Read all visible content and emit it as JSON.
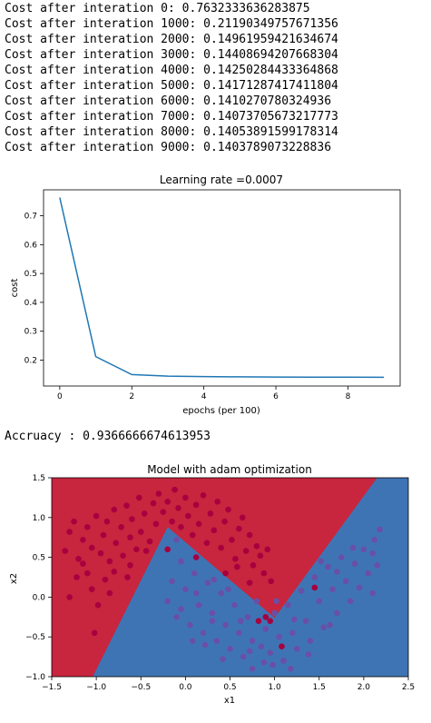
{
  "output_log": {
    "lines": [
      "Cost after interation 0: 0.7632333636283875",
      "Cost after interation 1000: 0.21190349757671356",
      "Cost after interation 2000: 0.14961959421634674",
      "Cost after interation 3000: 0.14408694207668304",
      "Cost after interation 4000: 0.14250284433364868",
      "Cost after interation 5000: 0.14171287417411804",
      "Cost after interation 6000: 0.1410270780324936",
      "Cost after interation 7000: 0.14073705673217773",
      "Cost after interation 8000: 0.14053891599178314",
      "Cost after interation 9000: 0.1403789073228836"
    ],
    "accuracy_line": "Accruacy : 0.9366666674613953"
  },
  "chart_data": [
    {
      "type": "line",
      "title": "Learning rate =0.0007",
      "xlabel": "epochs (per 100)",
      "ylabel": "cost",
      "x": [
        0,
        1,
        2,
        3,
        4,
        5,
        6,
        7,
        8,
        9
      ],
      "series": [
        {
          "values": [
            0.7632,
            0.2119,
            0.1496,
            0.1441,
            0.1425,
            0.1417,
            0.141,
            0.1407,
            0.1405,
            0.1404
          ],
          "color": "#1f77b4"
        }
      ],
      "xlim": [
        -0.45,
        9.45
      ],
      "ylim": [
        0.11,
        0.79
      ],
      "xticks": [
        0,
        2,
        4,
        6,
        8
      ],
      "xtick_labels": [
        "0",
        "2",
        "4",
        "6",
        "8"
      ],
      "yticks": [
        0.2,
        0.3,
        0.4,
        0.5,
        0.6,
        0.7
      ],
      "ytick_labels": [
        "0.2",
        "0.3",
        "0.4",
        "0.5",
        "0.6",
        "0.7"
      ],
      "grid": false
    },
    {
      "type": "scatter",
      "title": "Model with adam optimization",
      "xlabel": "x1",
      "ylabel": "x2",
      "xlim": [
        -1.5,
        2.5
      ],
      "ylim": [
        -1.0,
        1.5
      ],
      "xticks": [
        -1.5,
        -1.0,
        -0.5,
        0.0,
        0.5,
        1.0,
        1.5,
        2.0,
        2.5
      ],
      "xtick_labels": [
        "−1.5",
        "−1.0",
        "−0.5",
        "0.0",
        "0.5",
        "1.0",
        "1.5",
        "2.0",
        "2.5"
      ],
      "yticks": [
        -1.0,
        -0.5,
        0.0,
        0.5,
        1.0,
        1.5
      ],
      "ytick_labels": [
        "−1.0",
        "−0.5",
        "0.0",
        "0.5",
        "1.0",
        "1.5"
      ],
      "decision_boundary": [
        [
          -1.04,
          -1.0
        ],
        [
          -0.2,
          0.88
        ],
        [
          1.0,
          -0.26
        ],
        [
          2.15,
          1.5
        ]
      ],
      "region_colors": {
        "class_0": "#c8253e",
        "class_1": "#3f74b4"
      },
      "point_colors": {
        "class_0": "#a7003f",
        "class_1": "#6a4fa6"
      },
      "class_0_points": [
        [
          -1.35,
          0.58
        ],
        [
          -1.3,
          0.82
        ],
        [
          -1.25,
          0.95
        ],
        [
          -1.2,
          0.48
        ],
        [
          -1.15,
          0.72
        ],
        [
          -1.1,
          0.88
        ],
        [
          -1.05,
          0.62
        ],
        [
          -1.0,
          1.02
        ],
        [
          -0.95,
          0.55
        ],
        [
          -0.92,
          0.78
        ],
        [
          -0.88,
          0.95
        ],
        [
          -0.85,
          0.45
        ],
        [
          -0.8,
          1.1
        ],
        [
          -0.78,
          0.68
        ],
        [
          -0.72,
          0.88
        ],
        [
          -0.7,
          0.52
        ],
        [
          -0.66,
          1.15
        ],
        [
          -0.62,
          0.75
        ],
        [
          -0.6,
          0.98
        ],
        [
          -0.55,
          0.6
        ],
        [
          -0.52,
          1.25
        ],
        [
          -0.5,
          0.82
        ],
        [
          -0.46,
          1.05
        ],
        [
          -0.44,
          0.58
        ],
        [
          -0.4,
          0.7
        ],
        [
          -0.36,
          1.18
        ],
        [
          -0.33,
          0.92
        ],
        [
          -0.3,
          1.3
        ],
        [
          -0.25,
          1.07
        ],
        [
          -0.2,
          1.2
        ],
        [
          -0.15,
          0.95
        ],
        [
          -0.12,
          1.35
        ],
        [
          -0.08,
          1.12
        ],
        [
          -0.05,
          0.88
        ],
        [
          0.0,
          1.25
        ],
        [
          0.03,
          1.02
        ],
        [
          0.08,
          0.78
        ],
        [
          0.12,
          1.16
        ],
        [
          0.15,
          0.92
        ],
        [
          0.2,
          1.28
        ],
        [
          0.24,
          0.68
        ],
        [
          0.28,
          1.05
        ],
        [
          0.32,
          0.84
        ],
        [
          0.36,
          1.2
        ],
        [
          0.4,
          0.62
        ],
        [
          0.44,
          0.95
        ],
        [
          0.48,
          1.1
        ],
        [
          0.52,
          0.72
        ],
        [
          0.56,
          0.48
        ],
        [
          0.6,
          0.86
        ],
        [
          0.64,
          1.0
        ],
        [
          0.68,
          0.58
        ],
        [
          0.72,
          0.78
        ],
        [
          0.76,
          0.4
        ],
        [
          0.8,
          0.64
        ],
        [
          0.84,
          0.52
        ],
        [
          0.88,
          0.3
        ],
        [
          0.92,
          0.6
        ],
        [
          0.96,
          0.2
        ],
        [
          -1.3,
          0.0
        ],
        [
          -1.05,
          0.1
        ],
        [
          -0.98,
          -0.1
        ],
        [
          -0.9,
          0.22
        ],
        [
          -1.1,
          0.3
        ],
        [
          -0.8,
          0.32
        ],
        [
          -1.02,
          -0.45
        ],
        [
          -0.65,
          0.25
        ],
        [
          -0.85,
          0.05
        ],
        [
          -1.15,
          0.42
        ],
        [
          -0.62,
          0.4
        ],
        [
          -1.22,
          0.25
        ],
        [
          -0.2,
          0.6
        ],
        [
          0.12,
          0.5
        ],
        [
          0.58,
          0.38
        ],
        [
          0.72,
          0.18
        ],
        [
          0.45,
          0.3
        ],
        [
          0.9,
          -0.25
        ],
        [
          0.95,
          -0.3
        ],
        [
          1.45,
          0.12
        ],
        [
          1.08,
          -0.62
        ],
        [
          0.82,
          -0.3
        ]
      ],
      "class_1_points": [
        [
          -0.1,
          0.72
        ],
        [
          -0.05,
          0.45
        ],
        [
          -0.15,
          0.2
        ],
        [
          -0.2,
          -0.05
        ],
        [
          -0.1,
          -0.25
        ],
        [
          0.0,
          0.1
        ],
        [
          0.05,
          -0.35
        ],
        [
          0.1,
          0.3
        ],
        [
          0.15,
          -0.1
        ],
        [
          0.2,
          -0.45
        ],
        [
          0.25,
          0.18
        ],
        [
          0.3,
          -0.2
        ],
        [
          0.35,
          -0.55
        ],
        [
          0.4,
          0.05
        ],
        [
          0.45,
          -0.35
        ],
        [
          0.5,
          -0.65
        ],
        [
          0.55,
          -0.1
        ],
        [
          0.6,
          -0.45
        ],
        [
          0.65,
          -0.75
        ],
        [
          0.7,
          -0.25
        ],
        [
          0.75,
          -0.55
        ],
        [
          0.8,
          -0.05
        ],
        [
          0.85,
          -0.62
        ],
        [
          0.9,
          -0.4
        ],
        [
          0.95,
          -0.7
        ],
        [
          1.0,
          -0.2
        ],
        [
          1.05,
          -0.5
        ],
        [
          1.1,
          -0.8
        ],
        [
          1.15,
          -0.1
        ],
        [
          1.2,
          -0.45
        ],
        [
          1.25,
          -0.65
        ],
        [
          1.3,
          0.08
        ],
        [
          1.35,
          -0.3
        ],
        [
          1.4,
          -0.55
        ],
        [
          1.45,
          0.25
        ],
        [
          1.5,
          -0.05
        ],
        [
          1.55,
          -0.38
        ],
        [
          1.6,
          0.38
        ],
        [
          1.65,
          0.1
        ],
        [
          1.7,
          -0.2
        ],
        [
          1.75,
          0.5
        ],
        [
          1.8,
          0.2
        ],
        [
          1.85,
          -0.05
        ],
        [
          1.9,
          0.42
        ],
        [
          1.95,
          0.12
        ],
        [
          2.0,
          0.6
        ],
        [
          2.05,
          0.3
        ],
        [
          2.1,
          0.05
        ],
        [
          2.12,
          0.72
        ],
        [
          2.15,
          0.4
        ],
        [
          2.18,
          0.85
        ],
        [
          2.1,
          0.55
        ],
        [
          1.88,
          0.62
        ],
        [
          1.7,
          0.32
        ],
        [
          1.52,
          0.45
        ],
        [
          1.62,
          -0.35
        ],
        [
          1.38,
          -0.72
        ],
        [
          1.22,
          -0.28
        ],
        [
          1.02,
          -0.05
        ],
        [
          0.88,
          -0.82
        ],
        [
          0.72,
          -0.68
        ],
        [
          0.62,
          -0.3
        ],
        [
          0.42,
          -0.78
        ],
        [
          0.32,
          0.22
        ],
        [
          0.22,
          -0.6
        ],
        [
          0.12,
          0.05
        ],
        [
          -0.05,
          -0.15
        ],
        [
          0.08,
          -0.55
        ],
        [
          0.48,
          0.1
        ],
        [
          0.98,
          -0.85
        ],
        [
          1.18,
          -0.9
        ],
        [
          0.75,
          -0.9
        ],
        [
          0.3,
          -0.3
        ]
      ]
    }
  ]
}
